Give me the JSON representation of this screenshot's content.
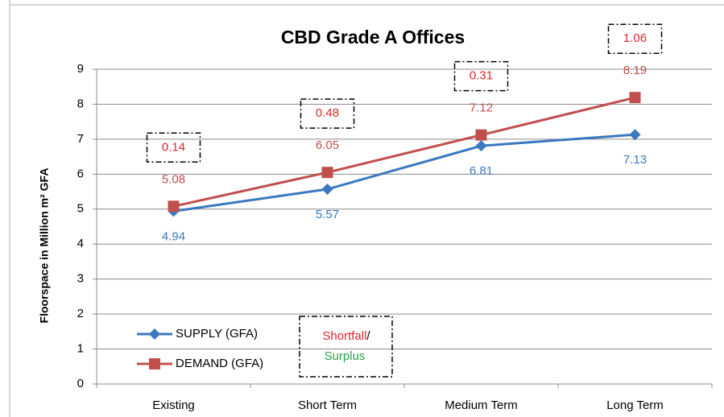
{
  "chart_data": {
    "type": "line",
    "title": "CBD Grade A Offices",
    "y_label": "Floorspace in Million  m² GFA",
    "categories": [
      "Existing",
      "Short Term",
      "Medium Term",
      "Long Term"
    ],
    "series": [
      {
        "name": "SUPPLY (GFA)",
        "color": "#3b78bf",
        "marker": "diamond",
        "values": [
          4.94,
          5.57,
          6.81,
          7.13
        ]
      },
      {
        "name": "DEMAND (GFA)",
        "color": "#c0504d",
        "marker": "square",
        "values": [
          5.08,
          6.05,
          7.12,
          8.19
        ]
      }
    ],
    "shortfall": {
      "color": "#e0262b",
      "values": [
        0.14,
        0.48,
        0.31,
        1.06
      ]
    },
    "legend_note": {
      "shortfall": "Shortfall",
      "shortfall_color": "#e0262b",
      "separator": "/",
      "surplus": "Surplus",
      "surplus_color": "#2ea043"
    },
    "ylim": [
      0,
      9
    ],
    "yticks": [
      0,
      1,
      2,
      3,
      4,
      5,
      6,
      7,
      8,
      9
    ],
    "grid": true,
    "legend": "lower left"
  }
}
